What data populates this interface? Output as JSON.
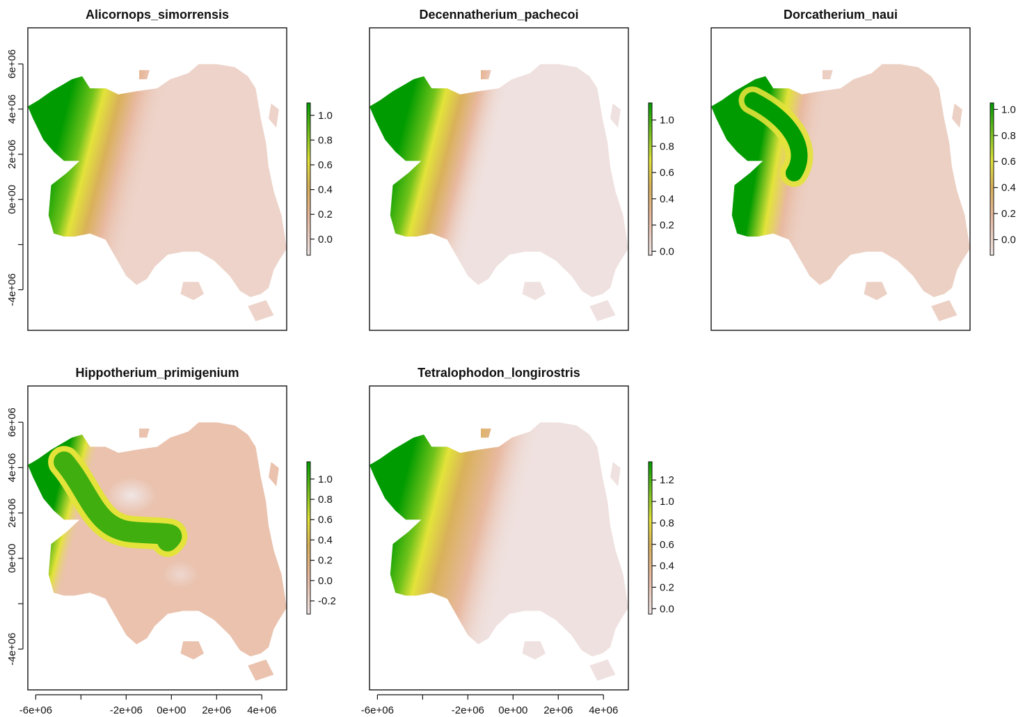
{
  "chart_data": [
    {
      "type": "heatmap",
      "title": "Alicornops_simorrensis",
      "x_ticks": [
        -6000000,
        -4000000,
        -2000000,
        0,
        2000000,
        4000000
      ],
      "x_tick_labels": [
        "-6e+06",
        "",
        "-2e+06",
        "0e+00",
        "2e+06",
        "4e+06"
      ],
      "y_ticks": [
        -4000000,
        -2000000,
        0,
        2000000,
        4000000,
        6000000
      ],
      "y_tick_labels": [
        "-4e+06",
        "",
        "0e+00",
        "2e+06",
        "4e+06",
        "6e+06"
      ],
      "show_x_axis": false,
      "show_y_axis": true,
      "xlim": [
        -6350000,
        5100000
      ],
      "ylim": [
        -5800000,
        7600000
      ],
      "colorbar": {
        "range": [
          -0.13,
          1.1
        ],
        "ticks": [
          0.0,
          0.2,
          0.4,
          0.6,
          0.8,
          1.0
        ],
        "tick_labels": [
          "0.0",
          "0.2",
          "0.4",
          "0.6",
          "0.8",
          "1.0"
        ]
      },
      "colors": {
        "low": "#f0e5e5",
        "mid_low": "#e8b9a0",
        "mid": "#d9b15a",
        "mid_high": "#e3e33a",
        "high": "#009b00"
      },
      "pattern": "west_gradient",
      "base_value": 0.1
    },
    {
      "type": "heatmap",
      "title": "Decennatherium_pachecoi",
      "x_ticks": [
        -6000000,
        -4000000,
        -2000000,
        0,
        2000000,
        4000000
      ],
      "x_tick_labels": [
        "-6e+06",
        "",
        "-2e+06",
        "0e+00",
        "2e+06",
        "4e+06"
      ],
      "y_ticks": [
        -4000000,
        -2000000,
        0,
        2000000,
        4000000,
        6000000
      ],
      "y_tick_labels": [
        "-4e+06",
        "",
        "0e+00",
        "2e+06",
        "4e+06",
        "6e+06"
      ],
      "show_x_axis": false,
      "show_y_axis": false,
      "xlim": [
        -6350000,
        5100000
      ],
      "ylim": [
        -5800000,
        7600000
      ],
      "colorbar": {
        "range": [
          -0.03,
          1.13
        ],
        "ticks": [
          0.0,
          0.2,
          0.4,
          0.6,
          0.8,
          1.0
        ],
        "tick_labels": [
          "0.0",
          "0.2",
          "0.4",
          "0.6",
          "0.8",
          "1.0"
        ]
      },
      "colors": {
        "low": "#f0e5e5",
        "mid_low": "#e8b9a0",
        "mid": "#d9b15a",
        "mid_high": "#e3e33a",
        "high": "#009b00"
      },
      "pattern": "west_gradient",
      "base_value": 0.02
    },
    {
      "type": "heatmap",
      "title": "Dorcatherium_naui",
      "x_ticks": [
        -6000000,
        -4000000,
        -2000000,
        0,
        2000000,
        4000000
      ],
      "x_tick_labels": [
        "-6e+06",
        "",
        "-2e+06",
        "0e+00",
        "2e+06",
        "4e+06"
      ],
      "y_ticks": [
        -4000000,
        -2000000,
        0,
        2000000,
        4000000,
        6000000
      ],
      "y_tick_labels": [
        "-4e+06",
        "",
        "0e+00",
        "2e+06",
        "4e+06",
        "6e+06"
      ],
      "show_x_axis": false,
      "show_y_axis": false,
      "xlim": [
        -6350000,
        5100000
      ],
      "ylim": [
        -5800000,
        7600000
      ],
      "colorbar": {
        "range": [
          -0.12,
          1.05
        ],
        "ticks": [
          0.0,
          0.2,
          0.4,
          0.6,
          0.8,
          1.0
        ],
        "tick_labels": [
          "0.0",
          "0.2",
          "0.4",
          "0.6",
          "0.8",
          "1.0"
        ]
      },
      "colors": {
        "low": "#f0e5e5",
        "mid_low": "#e8b9a0",
        "mid": "#d9b15a",
        "mid_high": "#e3e33a",
        "high": "#009b00"
      },
      "pattern": "band",
      "base_value": 0.12
    },
    {
      "type": "heatmap",
      "title": "Hippotherium_primigenium",
      "x_ticks": [
        -6000000,
        -4000000,
        -2000000,
        0,
        2000000,
        4000000
      ],
      "x_tick_labels": [
        "-6e+06",
        "",
        "-2e+06",
        "0e+00",
        "2e+06",
        "4e+06"
      ],
      "y_ticks": [
        -4000000,
        -2000000,
        0,
        2000000,
        4000000,
        6000000
      ],
      "y_tick_labels": [
        "-4e+06",
        "",
        "0e+00",
        "2e+06",
        "4e+06",
        "6e+06"
      ],
      "show_x_axis": true,
      "show_y_axis": true,
      "xlim": [
        -6350000,
        5100000
      ],
      "ylim": [
        -5800000,
        7600000
      ],
      "colorbar": {
        "range": [
          -0.33,
          1.17
        ],
        "ticks": [
          -0.2,
          0.0,
          0.2,
          0.4,
          0.6,
          0.8,
          1.0
        ],
        "tick_labels": [
          "-0.2",
          "0.0",
          "0.2",
          "0.4",
          "0.6",
          "0.8",
          "1.0"
        ]
      },
      "colors": {
        "low": "#f0e5e5",
        "mid_low": "#e8b9a0",
        "mid": "#d9b15a",
        "mid_high": "#e3e33a",
        "high": "#009b00"
      },
      "pattern": "hippo",
      "base_value": 0.2
    },
    {
      "type": "heatmap",
      "title": "Tetralophodon_longirostris",
      "x_ticks": [
        -6000000,
        -4000000,
        -2000000,
        0,
        2000000,
        4000000
      ],
      "x_tick_labels": [
        "-6e+06",
        "",
        "-2e+06",
        "0e+00",
        "2e+06",
        "4e+06"
      ],
      "y_ticks": [
        -4000000,
        -2000000,
        0,
        2000000,
        4000000,
        6000000
      ],
      "y_tick_labels": [
        "-4e+06",
        "",
        "0e+00",
        "2e+06",
        "4e+06",
        "6e+06"
      ],
      "show_x_axis": true,
      "show_y_axis": false,
      "xlim": [
        -6350000,
        5100000
      ],
      "ylim": [
        -5800000,
        7600000
      ],
      "colorbar": {
        "range": [
          -0.05,
          1.37
        ],
        "ticks": [
          0.0,
          0.2,
          0.4,
          0.6,
          0.8,
          1.0,
          1.2
        ],
        "tick_labels": [
          "0.0",
          "0.2",
          "0.4",
          "0.6",
          "0.8",
          "1.0",
          "1.2"
        ]
      },
      "colors": {
        "low": "#f0e5e5",
        "mid_low": "#e8b9a0",
        "mid": "#d9b15a",
        "mid_high": "#e3e33a",
        "high": "#009b00"
      },
      "pattern": "west_gradient_wide",
      "base_value": 0.02
    }
  ]
}
